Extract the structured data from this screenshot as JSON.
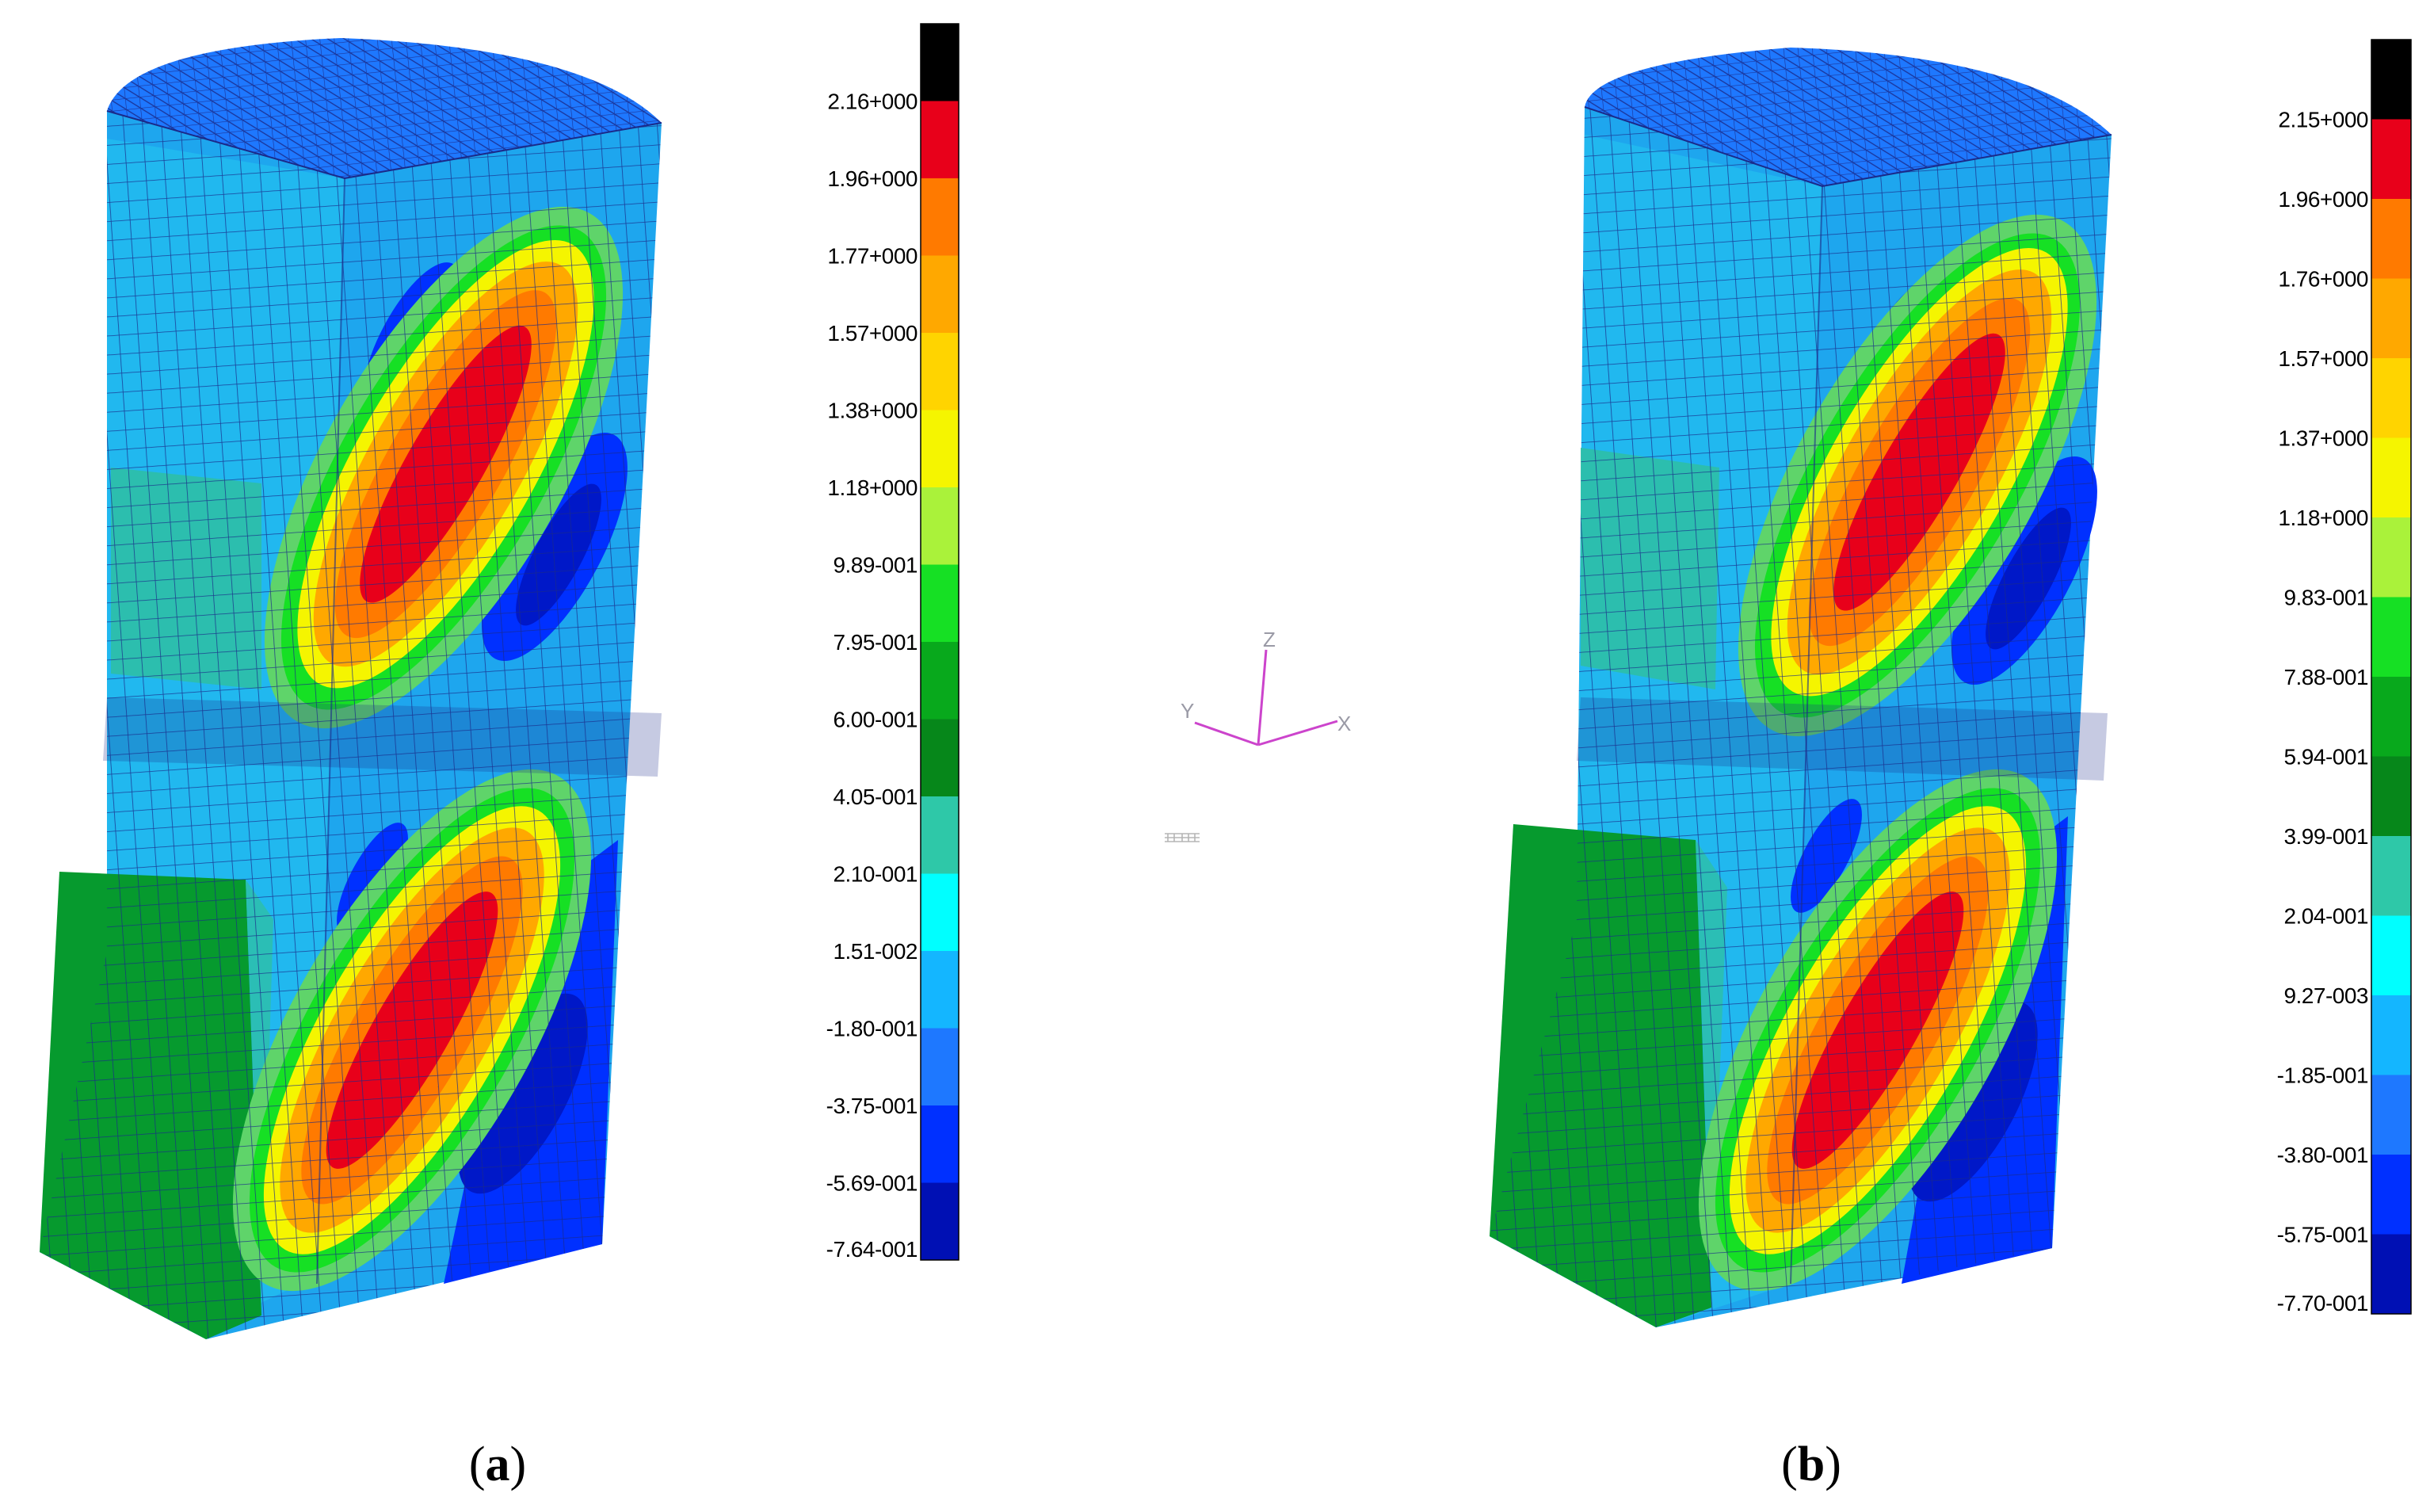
{
  "panels": [
    {
      "caption_open": "(",
      "caption_letter": "a",
      "caption_close": ")",
      "legend_labels": [
        "2.16+000",
        "1.96+000",
        "1.77+000",
        "1.57+000",
        "1.38+000",
        "1.18+000",
        "9.89-001",
        "7.95-001",
        "6.00-001",
        "4.05-001",
        "2.10-001",
        "1.51-002",
        "-1.80-001",
        "-3.75-001",
        "-5.69-001",
        "-7.64-001"
      ]
    },
    {
      "caption_open": "(",
      "caption_letter": "b",
      "caption_close": ")",
      "legend_labels": [
        "2.15+000",
        "1.96+000",
        "1.76+000",
        "1.57+000",
        "1.37+000",
        "1.18+000",
        "9.83-001",
        "7.88-001",
        "5.94-001",
        "3.99-001",
        "2.04-001",
        "9.27-003",
        "-1.85-001",
        "-3.80-001",
        "-5.75-001",
        "-7.70-001"
      ]
    }
  ],
  "legend_colors": [
    "#000000",
    "#e8001a",
    "#ff7a00",
    "#ffa800",
    "#ffd400",
    "#f5f500",
    "#aaf23a",
    "#16e024",
    "#08a91c",
    "#06871a",
    "#2ec8a8",
    "#00ffff",
    "#14b6ff",
    "#1e78ff",
    "#0030ff",
    "#0010b4"
  ],
  "axes_triad": {
    "z": "Z",
    "y": "Y",
    "x": "X",
    "color": "#cc44cc"
  }
}
